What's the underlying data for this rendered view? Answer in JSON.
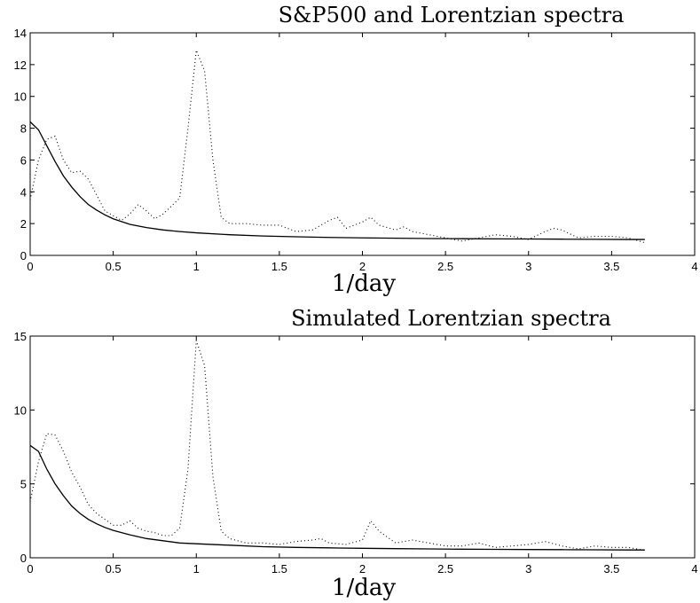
{
  "chart_data": [
    {
      "type": "line",
      "title": "S&P500 and Lorentzian spectra",
      "xlabel": "1/day",
      "ylabel": "",
      "xlim": [
        0,
        4
      ],
      "ylim": [
        0,
        14
      ],
      "xticks": [
        0,
        0.5,
        1,
        1.5,
        2,
        2.5,
        3,
        3.5,
        4
      ],
      "xtick_labels": [
        "0",
        "0.5",
        "1",
        "1.5",
        "2",
        "2.5",
        "3",
        "3.5",
        "4"
      ],
      "yticks": [
        0,
        2,
        4,
        6,
        8,
        10,
        12,
        14
      ],
      "ytick_labels": [
        "0",
        "2",
        "4",
        "6",
        "8",
        "10",
        "12",
        "14"
      ],
      "grid": false,
      "series": [
        {
          "style": "dotted",
          "x": [
            0,
            0.05,
            0.1,
            0.15,
            0.2,
            0.25,
            0.3,
            0.35,
            0.4,
            0.45,
            0.5,
            0.55,
            0.6,
            0.65,
            0.7,
            0.75,
            0.8,
            0.85,
            0.9,
            0.95,
            1.0,
            1.05,
            1.1,
            1.15,
            1.2,
            1.3,
            1.4,
            1.5,
            1.6,
            1.7,
            1.8,
            1.85,
            1.9,
            2.0,
            2.05,
            2.1,
            2.2,
            2.25,
            2.3,
            2.4,
            2.5,
            2.6,
            2.7,
            2.8,
            2.9,
            3.0,
            3.1,
            3.15,
            3.2,
            3.3,
            3.4,
            3.5,
            3.6,
            3.7
          ],
          "y": [
            3.5,
            6.0,
            7.3,
            7.5,
            6.0,
            5.2,
            5.3,
            4.8,
            3.8,
            2.8,
            2.5,
            2.2,
            2.6,
            3.2,
            2.8,
            2.3,
            2.6,
            3.1,
            3.6,
            8.0,
            12.9,
            11.6,
            6.0,
            2.4,
            2.0,
            2.0,
            1.9,
            1.9,
            1.5,
            1.6,
            2.2,
            2.4,
            1.7,
            2.1,
            2.4,
            1.9,
            1.6,
            1.8,
            1.5,
            1.3,
            1.1,
            0.9,
            1.1,
            1.3,
            1.2,
            1.0,
            1.5,
            1.7,
            1.6,
            1.1,
            1.2,
            1.2,
            1.1,
            0.8
          ]
        },
        {
          "style": "solid",
          "x": [
            0,
            0.05,
            0.1,
            0.15,
            0.2,
            0.25,
            0.3,
            0.35,
            0.4,
            0.45,
            0.5,
            0.6,
            0.7,
            0.8,
            0.9,
            1.0,
            1.2,
            1.4,
            1.6,
            1.8,
            2.0,
            2.2,
            2.4,
            2.6,
            2.8,
            3.0,
            3.2,
            3.4,
            3.6,
            3.7
          ],
          "y": [
            8.4,
            7.9,
            6.9,
            5.9,
            5.0,
            4.3,
            3.7,
            3.2,
            2.85,
            2.55,
            2.3,
            1.95,
            1.75,
            1.6,
            1.5,
            1.42,
            1.3,
            1.22,
            1.17,
            1.13,
            1.1,
            1.08,
            1.06,
            1.05,
            1.04,
            1.03,
            1.02,
            1.01,
            1.0,
            1.0
          ]
        }
      ]
    },
    {
      "type": "line",
      "title": "Simulated Lorentzian spectra",
      "xlabel": "1/day",
      "ylabel": "",
      "xlim": [
        0,
        4
      ],
      "ylim": [
        0,
        15
      ],
      "xticks": [
        0,
        0.5,
        1,
        1.5,
        2,
        2.5,
        3,
        3.5,
        4
      ],
      "xtick_labels": [
        "0",
        "0.5",
        "1",
        "1.5",
        "2",
        "2.5",
        "3",
        "3.5",
        "4"
      ],
      "yticks": [
        0,
        5,
        10,
        15
      ],
      "ytick_labels": [
        "0",
        "5",
        "10",
        "15"
      ],
      "grid": false,
      "series": [
        {
          "style": "dotted",
          "x": [
            0,
            0.05,
            0.1,
            0.15,
            0.2,
            0.25,
            0.3,
            0.35,
            0.4,
            0.45,
            0.5,
            0.55,
            0.6,
            0.65,
            0.7,
            0.75,
            0.8,
            0.85,
            0.9,
            0.95,
            1.0,
            1.05,
            1.1,
            1.15,
            1.2,
            1.3,
            1.4,
            1.5,
            1.6,
            1.7,
            1.75,
            1.8,
            1.9,
            2.0,
            2.05,
            2.1,
            2.2,
            2.3,
            2.4,
            2.5,
            2.6,
            2.7,
            2.8,
            2.9,
            3.0,
            3.1,
            3.2,
            3.3,
            3.4,
            3.5,
            3.6,
            3.7
          ],
          "y": [
            3.8,
            6.5,
            8.4,
            8.3,
            7.2,
            5.8,
            4.8,
            3.6,
            3.0,
            2.6,
            2.2,
            2.2,
            2.5,
            2.0,
            1.8,
            1.7,
            1.5,
            1.5,
            2.0,
            6.0,
            14.7,
            13.0,
            5.5,
            1.8,
            1.3,
            1.0,
            1.0,
            0.9,
            1.1,
            1.2,
            1.3,
            1.0,
            0.9,
            1.2,
            2.5,
            1.8,
            1.0,
            1.2,
            1.0,
            0.8,
            0.8,
            1.0,
            0.7,
            0.8,
            0.9,
            1.1,
            0.8,
            0.6,
            0.8,
            0.7,
            0.7,
            0.5
          ]
        },
        {
          "style": "solid",
          "x": [
            0,
            0.05,
            0.1,
            0.15,
            0.2,
            0.25,
            0.3,
            0.35,
            0.4,
            0.45,
            0.5,
            0.6,
            0.7,
            0.8,
            0.9,
            1.0,
            1.2,
            1.4,
            1.6,
            1.8,
            2.0,
            2.2,
            2.4,
            2.6,
            2.8,
            3.0,
            3.2,
            3.4,
            3.6,
            3.7
          ],
          "y": [
            7.6,
            7.2,
            6.0,
            5.0,
            4.2,
            3.5,
            3.0,
            2.6,
            2.3,
            2.05,
            1.85,
            1.55,
            1.3,
            1.15,
            1.0,
            0.95,
            0.85,
            0.75,
            0.7,
            0.67,
            0.64,
            0.62,
            0.6,
            0.58,
            0.57,
            0.56,
            0.55,
            0.54,
            0.53,
            0.53
          ]
        }
      ]
    }
  ]
}
